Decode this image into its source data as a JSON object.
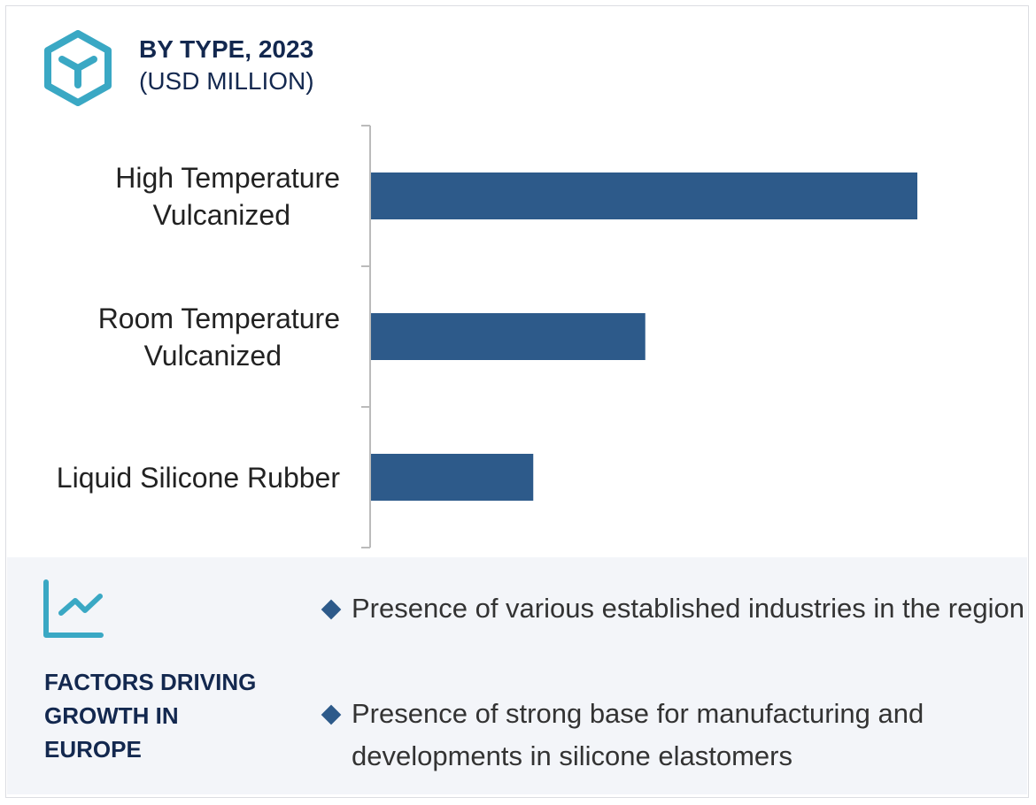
{
  "header": {
    "title": "BY TYPE, 2023",
    "subtitle": "(USD MILLION)"
  },
  "chart_data": {
    "type": "bar",
    "orientation": "horizontal",
    "title": "BY TYPE, 2023",
    "subtitle": "(USD MILLION)",
    "categories": [
      "High Temperature Vulcanized",
      "Room Temperature Vulcanized",
      "Liquid Silicone Rubber"
    ],
    "category_lines": [
      [
        "High Temperature",
        "Vulcanized"
      ],
      [
        "Room Temperature",
        "Vulcanized"
      ],
      [
        "Liquid Silicone Rubber"
      ]
    ],
    "values": [
      100,
      50.2,
      29.7
    ],
    "value_note": "relative values; no axis scale shown",
    "xlim": [
      0,
      100
    ],
    "bar_color": "#2d5a8a",
    "grid": false
  },
  "factors": {
    "title_lines": [
      "FACTORS DRIVING",
      "GROWTH IN",
      "EUROPE"
    ],
    "bullets": [
      "Presence of various established industries in the region",
      "Presence of strong base for manufacturing and developments in silicone elastomers"
    ]
  },
  "colors": {
    "accent": "#3aa8c4",
    "navy": "#13284f",
    "bar": "#2d5a8a",
    "panel": "#f3f5f9"
  }
}
